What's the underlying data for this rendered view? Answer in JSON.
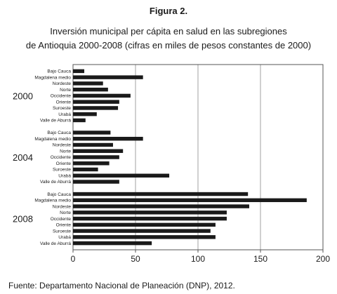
{
  "figure": {
    "label": "Figura 2.",
    "title_line1": "Inversión municipal per cápita en salud en las subregiones",
    "title_line2": "de Antioquia 2000-2008 (cifras en miles de pesos constantes de 2000)"
  },
  "source": "Fuente: Departamento Nacional de Planeación (DNP), 2012.",
  "chart_data": {
    "type": "bar",
    "orientation": "horizontal",
    "title": "",
    "xlabel": "",
    "ylabel": "",
    "xlim": [
      0,
      200
    ],
    "x_ticks": [
      0,
      50,
      100,
      150,
      200
    ],
    "grid": "vertical",
    "legend": "none",
    "bar_color": "#1a1a1a",
    "categories": [
      "Bajo Cauca",
      "Magdalena medio",
      "Nordeste",
      "Norte",
      "Occidente",
      "Oriente",
      "Suroeste",
      "Urabá",
      "Valle de Aburrá"
    ],
    "groups": [
      {
        "name": "2000",
        "values": [
          9,
          56,
          24,
          28,
          46,
          37,
          36,
          19,
          10
        ]
      },
      {
        "name": "2004",
        "values": [
          30,
          56,
          32,
          40,
          37,
          29,
          20,
          77,
          37
        ]
      },
      {
        "name": "2008",
        "values": [
          140,
          187,
          141,
          123,
          123,
          114,
          110,
          114,
          63
        ]
      }
    ]
  }
}
